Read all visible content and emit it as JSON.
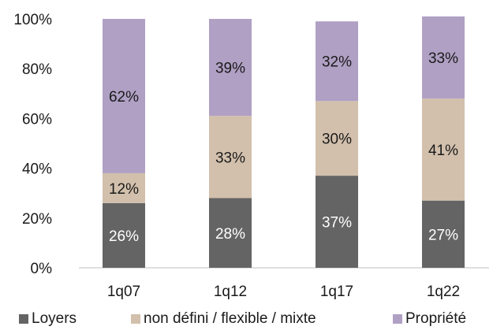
{
  "chart_data": {
    "type": "bar",
    "stacked": true,
    "percent": true,
    "categories": [
      "1q07",
      "1q12",
      "1q17",
      "1q22"
    ],
    "series": [
      {
        "name": "Loyers",
        "color": "#646464",
        "label_color": "#ffffff",
        "values": [
          26,
          28,
          37,
          27
        ],
        "labels": [
          "26%",
          "28%",
          "37%",
          "27%"
        ]
      },
      {
        "name": "non défini / flexible / mixte",
        "color": "#d2c0ac",
        "label_color": "#1a1a1a",
        "values": [
          12,
          33,
          30,
          41
        ],
        "labels": [
          "12%",
          "33%",
          "30%",
          "41%"
        ]
      },
      {
        "name": "Propriété",
        "color": "#b0a0c4",
        "label_color": "#1a1a1a",
        "values": [
          62,
          39,
          32,
          33
        ],
        "labels": [
          "62%",
          "39%",
          "32%",
          "33%"
        ]
      }
    ],
    "ylim": [
      0,
      100
    ],
    "yticks": [
      "0%",
      "20%",
      "40%",
      "60%",
      "80%",
      "100%"
    ],
    "grid": false,
    "legend_position": "bottom",
    "title": "",
    "xlabel": "",
    "ylabel": ""
  }
}
